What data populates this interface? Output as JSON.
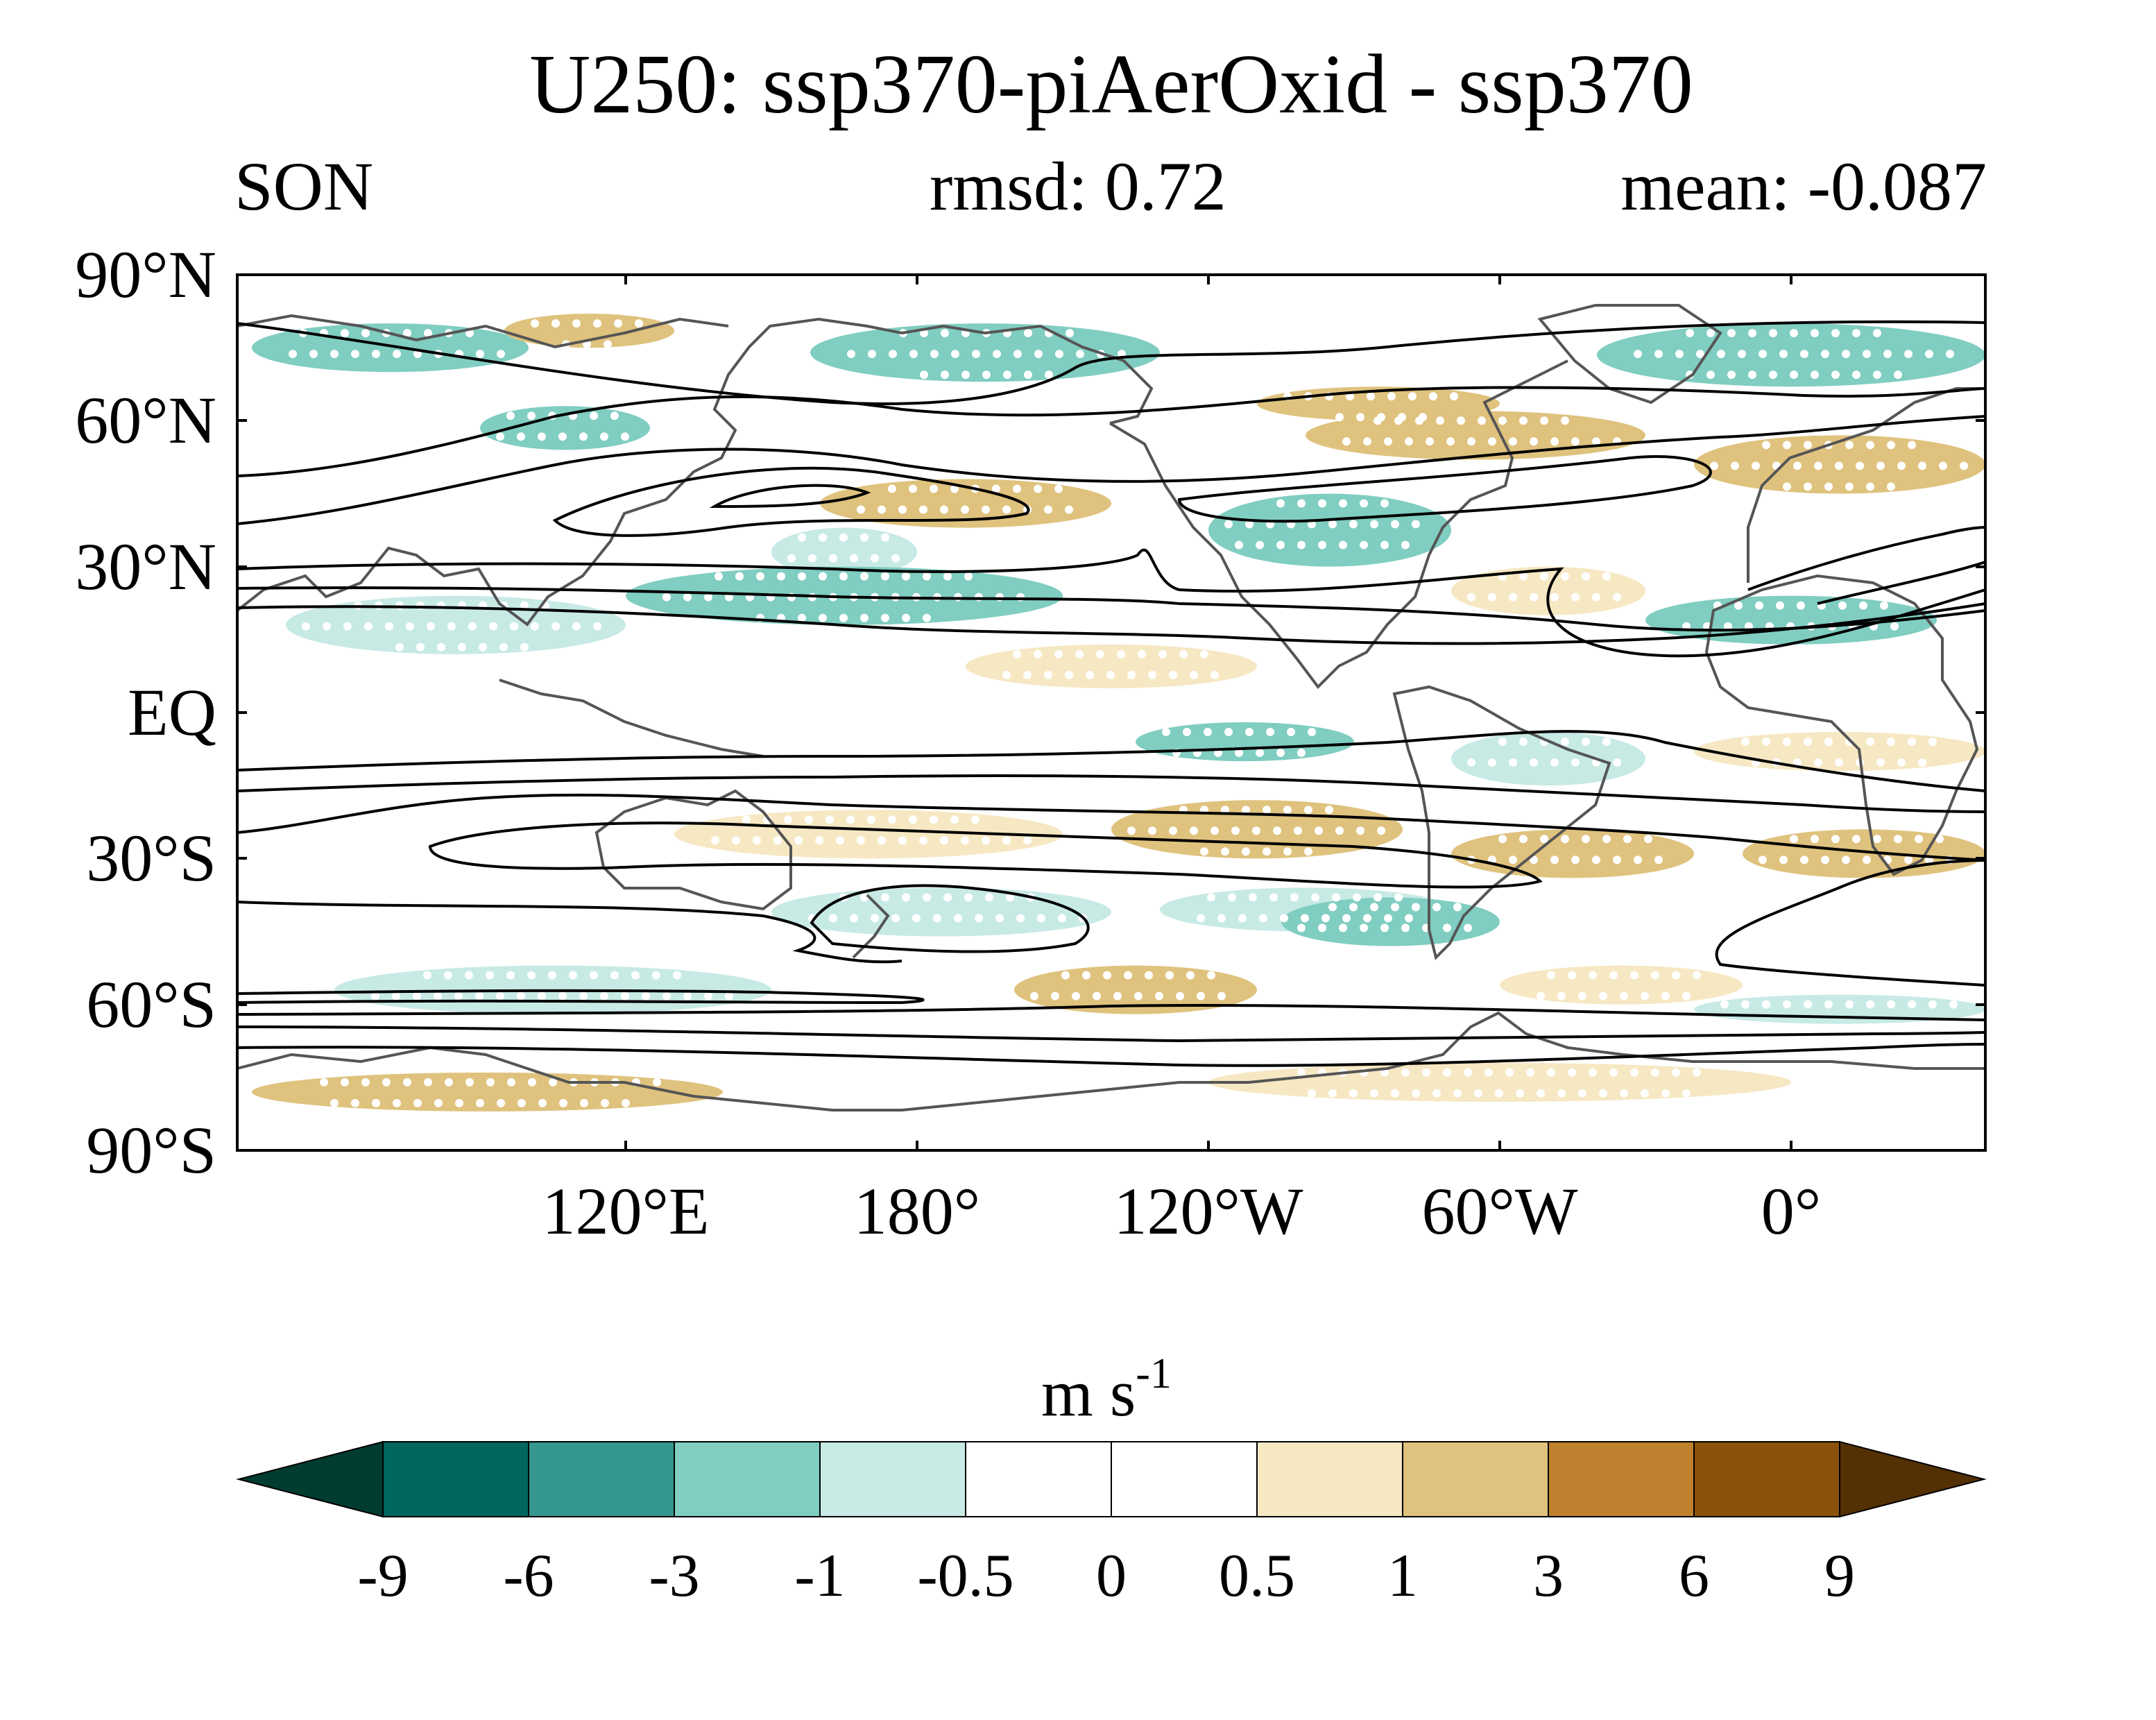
{
  "title": "U250: ssp370-piAerOxid - ssp370",
  "left_label": "SON",
  "center_label": "rmsd: 0.72",
  "right_label": "mean: -0.087",
  "lat_ticks": [
    "90°N",
    "60°N",
    "30°N",
    "EQ",
    "30°S",
    "60°S",
    "90°S"
  ],
  "lon_ticks": [
    "120°E",
    "180°",
    "120°W",
    "60°W",
    "0°"
  ],
  "colorbar": {
    "unit_base": "m s",
    "unit_exp": "-1",
    "levels": [
      "-9",
      "-6",
      "-3",
      "-1",
      "-0.5",
      "0",
      "0.5",
      "1",
      "3",
      "6",
      "9"
    ],
    "colors": [
      "#003c30",
      "#01665e",
      "#35978f",
      "#80cdc1",
      "#c7eae5",
      "#ffffff",
      "#ffffff",
      "#f6e8c3",
      "#dfc27d",
      "#bf812d",
      "#8c510a",
      "#543005"
    ]
  },
  "chart_data": {
    "type": "heatmap",
    "variable": "U250",
    "season": "SON",
    "rmsd": 0.72,
    "mean": -0.087,
    "projection": "cylindrical equidistant",
    "lon_range": [
      40,
      400
    ],
    "lat_range": [
      -90,
      90
    ],
    "contour_levels": [
      -9,
      -6,
      -3,
      -1,
      -0.5,
      0,
      0.5,
      1,
      3,
      6,
      9
    ],
    "stippling": "white dots",
    "overlay": "climatology contours (black)",
    "anomaly_regions": [
      {
        "lon": [
          43,
          100
        ],
        "lat": [
          70,
          80
        ],
        "value": -2
      },
      {
        "lon": [
          95,
          130
        ],
        "lat": [
          75,
          82
        ],
        "value": 1.5
      },
      {
        "lon": [
          90,
          125
        ],
        "lat": [
          54,
          63
        ],
        "value": -2
      },
      {
        "lon": [
          158,
          230
        ],
        "lat": [
          68,
          80
        ],
        "value": -2
      },
      {
        "lon": [
          320,
          400
        ],
        "lat": [
          67,
          80
        ],
        "value": -2
      },
      {
        "lon": [
          250,
          300
        ],
        "lat": [
          60,
          67
        ],
        "value": 1.5
      },
      {
        "lon": [
          260,
          330
        ],
        "lat": [
          52,
          62
        ],
        "value": 1.5
      },
      {
        "lon": [
          340,
          400
        ],
        "lat": [
          45,
          57
        ],
        "value": 1.5
      },
      {
        "lon": [
          160,
          220
        ],
        "lat": [
          38,
          48
        ],
        "value": 1.5
      },
      {
        "lon": [
          150,
          180
        ],
        "lat": [
          28,
          38
        ],
        "value": -0.8
      },
      {
        "lon": [
          240,
          290
        ],
        "lat": [
          30,
          45
        ],
        "value": -2
      },
      {
        "lon": [
          290,
          330
        ],
        "lat": [
          20,
          30
        ],
        "value": 0.8
      },
      {
        "lon": [
          330,
          390
        ],
        "lat": [
          14,
          24
        ],
        "value": -2
      },
      {
        "lon": [
          120,
          210
        ],
        "lat": [
          18,
          30
        ],
        "value": -2
      },
      {
        "lon": [
          50,
          120
        ],
        "lat": [
          12,
          24
        ],
        "value": -0.8
      },
      {
        "lon": [
          190,
          250
        ],
        "lat": [
          5,
          14
        ],
        "value": 0.8
      },
      {
        "lon": [
          225,
          270
        ],
        "lat": [
          -10,
          -2
        ],
        "value": -2
      },
      {
        "lon": [
          290,
          330
        ],
        "lat": [
          -15,
          -4
        ],
        "value": -0.8
      },
      {
        "lon": [
          340,
          400
        ],
        "lat": [
          -12,
          -4
        ],
        "value": 0.8
      },
      {
        "lon": [
          130,
          210
        ],
        "lat": [
          -30,
          -20
        ],
        "value": 0.8
      },
      {
        "lon": [
          220,
          280
        ],
        "lat": [
          -30,
          -18
        ],
        "value": 1.5
      },
      {
        "lon": [
          290,
          340
        ],
        "lat": [
          -34,
          -24
        ],
        "value": 1.5
      },
      {
        "lon": [
          350,
          400
        ],
        "lat": [
          -34,
          -24
        ],
        "value": 1.5
      },
      {
        "lon": [
          150,
          220
        ],
        "lat": [
          -46,
          -36
        ],
        "value": -0.8
      },
      {
        "lon": [
          230,
          290
        ],
        "lat": [
          -45,
          -36
        ],
        "value": -0.8
      },
      {
        "lon": [
          255,
          300
        ],
        "lat": [
          -48,
          -38
        ],
        "value": -2
      },
      {
        "lon": [
          200,
          250
        ],
        "lat": [
          -62,
          -52
        ],
        "value": 1.5
      },
      {
        "lon": [
          300,
          350
        ],
        "lat": [
          -60,
          -52
        ],
        "value": 0.8
      },
      {
        "lon": [
          60,
          150
        ],
        "lat": [
          -62,
          -52
        ],
        "value": -0.8
      },
      {
        "lon": [
          340,
          400
        ],
        "lat": [
          -64,
          -58
        ],
        "value": -0.8
      },
      {
        "lon": [
          43,
          140
        ],
        "lat": [
          -82,
          -74
        ],
        "value": 1.5
      },
      {
        "lon": [
          240,
          360
        ],
        "lat": [
          -80,
          -72
        ],
        "value": 0.8
      }
    ]
  }
}
